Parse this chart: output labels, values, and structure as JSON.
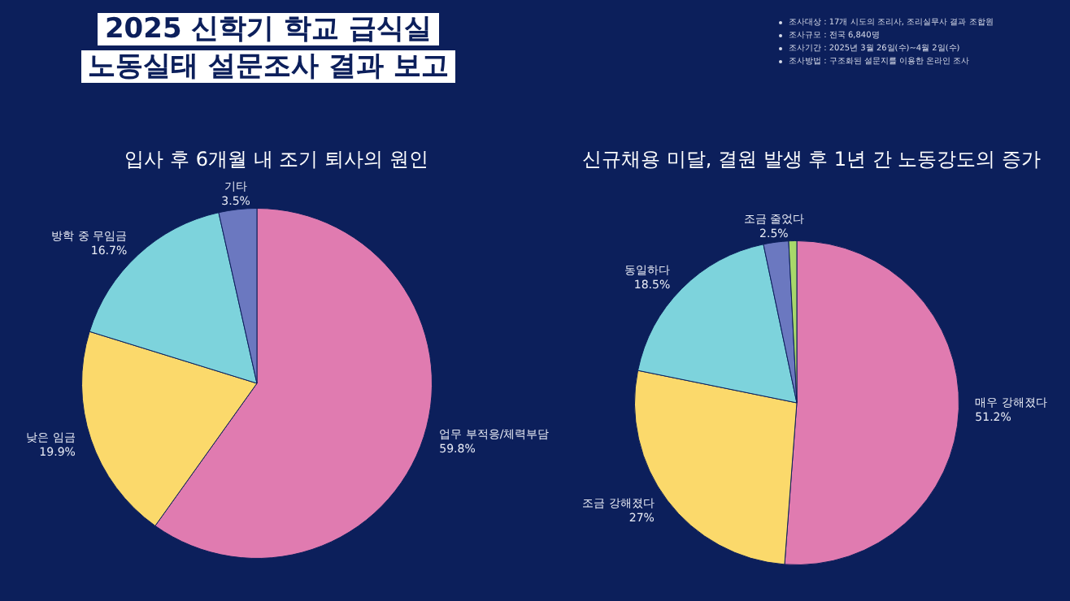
{
  "chart_data": [
    {
      "type": "other",
      "title": "2025 신학기 학교 급식실\n노동실태 설문조사 결과 보고",
      "annotations": [
        "조사대상 : 17개 시도의 조리사, 조리실무사 결과 조합원",
        "조사규모 : 전국 6,840명",
        "조사기간 : 2025년 3월 26일(수)~4월 2일(수)",
        "조사방법 : 구조화된 설문지를 이용한 온라인 조사"
      ]
    },
    {
      "type": "pie",
      "title": "입사 후 6개월 내 조기 퇴사의 원인",
      "categories": [
        "업무 부적응/체력부담",
        "낮은 임금",
        "방학 중 무임금",
        "기타"
      ],
      "values": [
        59.8,
        19.9,
        16.7,
        3.5
      ],
      "value_labels": [
        "59.8%",
        "19.9%",
        "16.7%",
        "3.5%"
      ],
      "colors": [
        "#e07bb0",
        "#fbd96b",
        "#7dd3dc",
        "#6b78c0"
      ]
    },
    {
      "type": "pie",
      "title": "신규채용 미달, 결원 발생 후 1년 간 노동강도의 증가",
      "categories": [
        "매우 강해졌다",
        "조금 강해졌다",
        "동일하다",
        "조금 줄었다",
        null
      ],
      "values": [
        51.2,
        27,
        18.5,
        2.5,
        0.8
      ],
      "value_labels": [
        "51.2%",
        "27%",
        "18.5%",
        "2.5%",
        null
      ],
      "colors": [
        "#e07bb0",
        "#fbd96b",
        "#7dd3dc",
        "#6b78c0",
        "#a8d86a"
      ]
    }
  ]
}
